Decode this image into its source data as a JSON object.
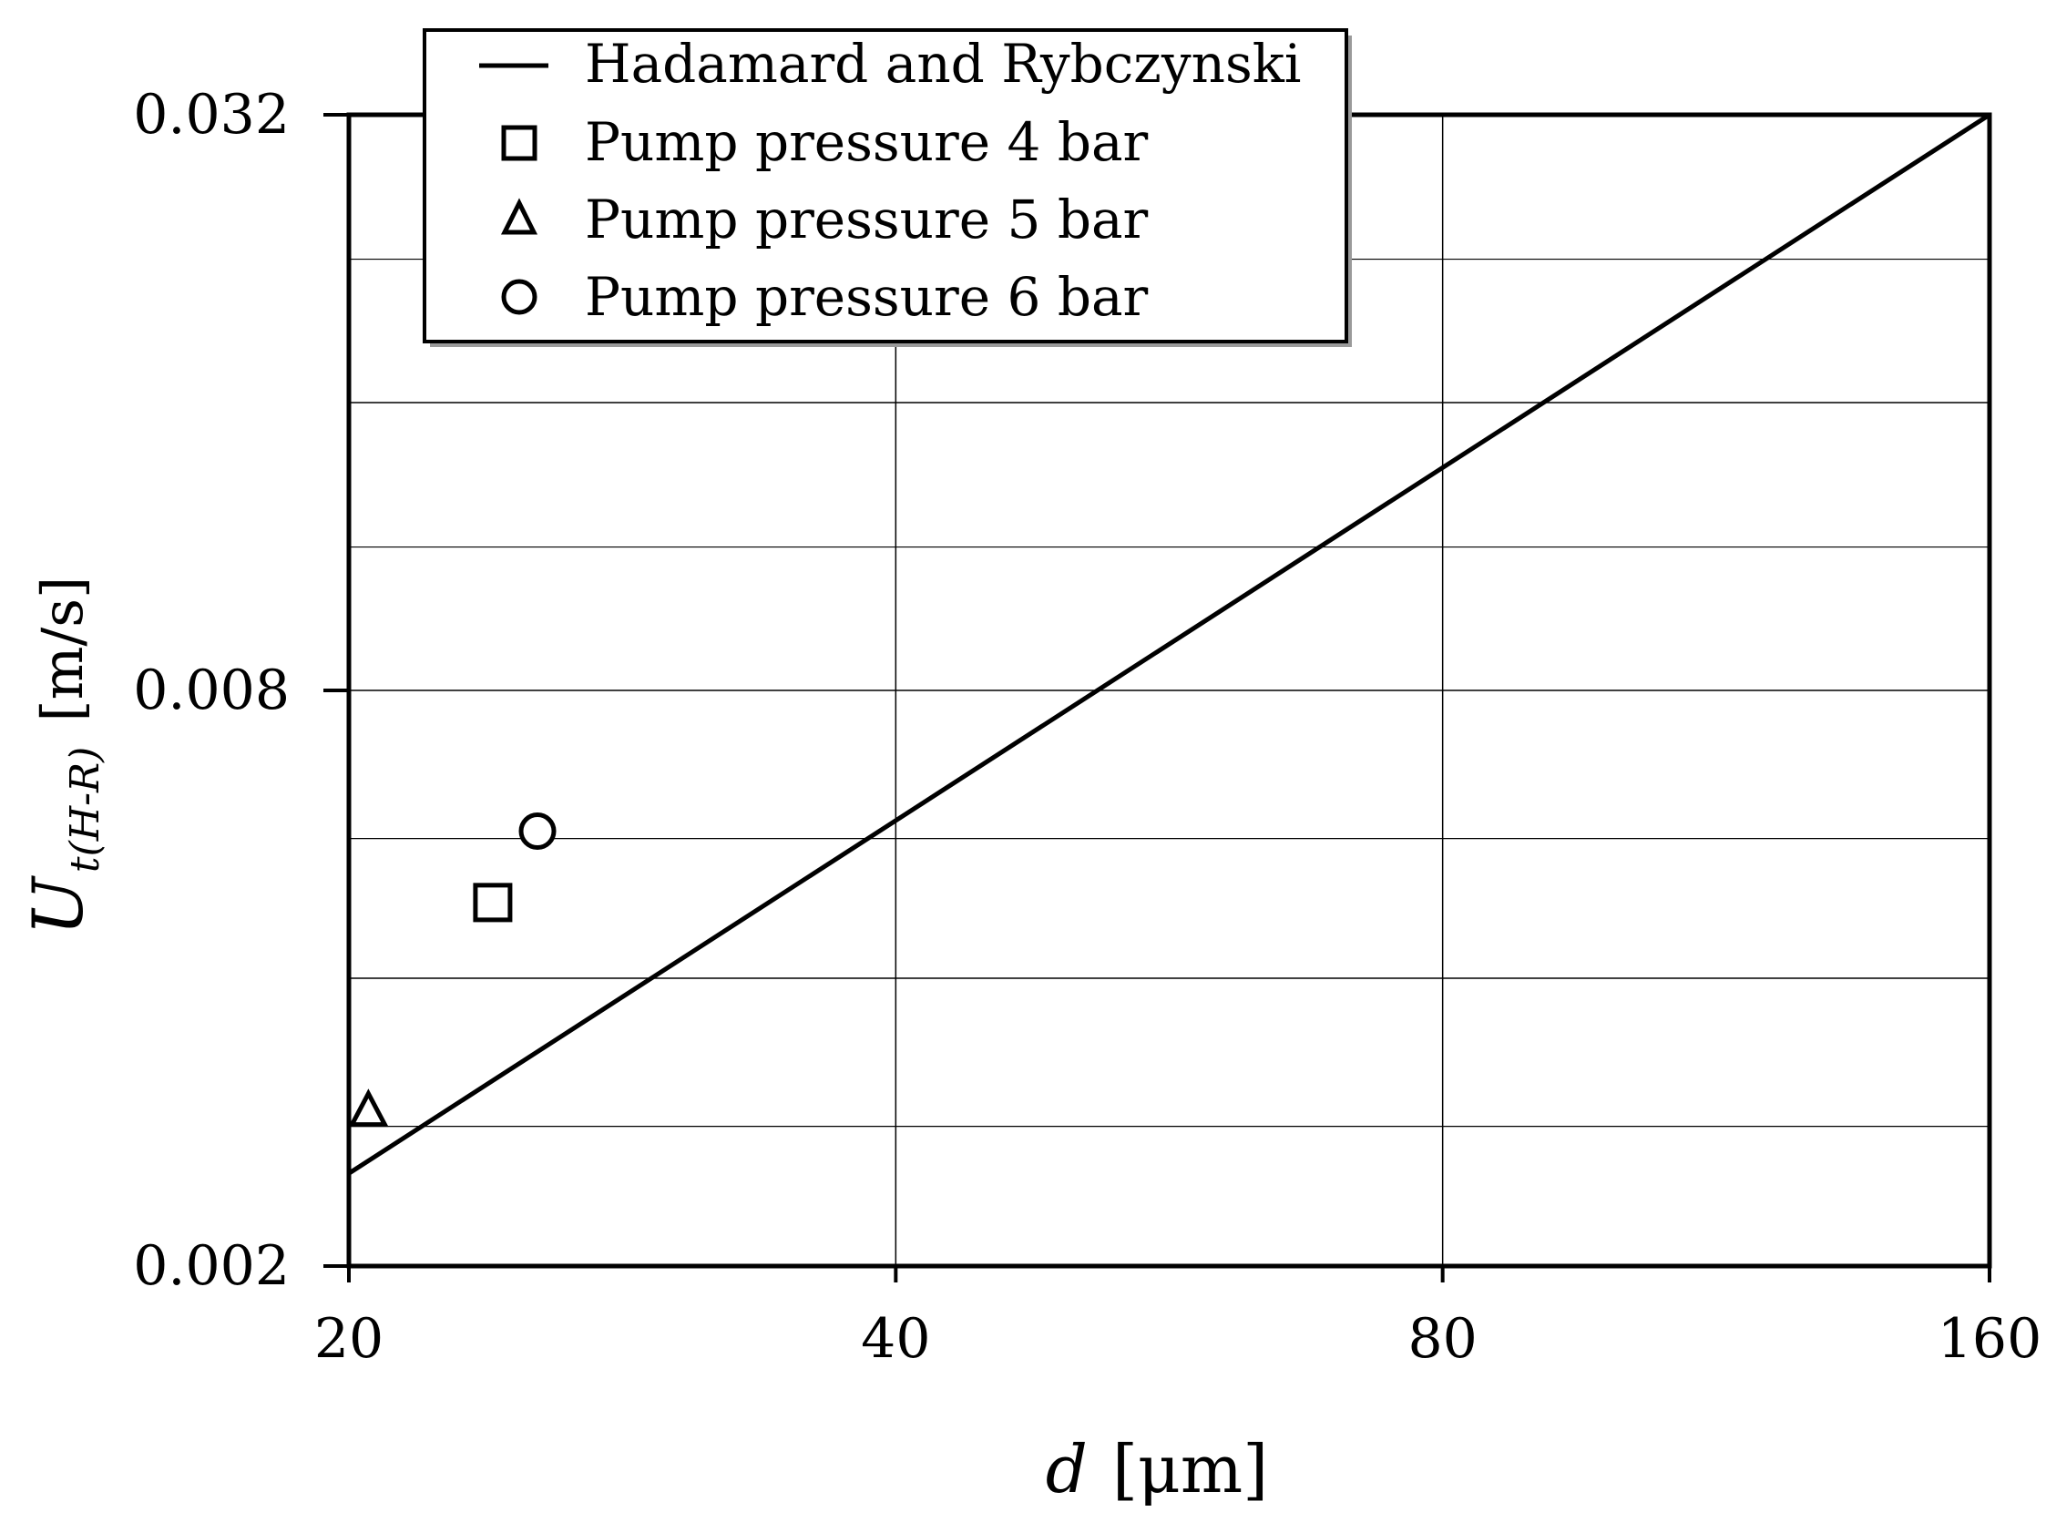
{
  "chart_data": {
    "type": "scatter",
    "x_scale": "log",
    "y_scale": "log",
    "xlim": [
      20,
      160
    ],
    "ylim": [
      0.002,
      0.032
    ],
    "x_ticks": [
      20,
      40,
      80,
      160
    ],
    "x_tick_labels": [
      "20",
      "40",
      "80",
      "160"
    ],
    "y_ticks": [
      0.002,
      0.008,
      0.032
    ],
    "y_tick_labels": [
      "0.002",
      "0.008",
      "0.032"
    ],
    "y_minor_grid": [
      0.004,
      0.016
    ],
    "grid": true,
    "xlabel": {
      "symbol": "d",
      "unit": "[μm]"
    },
    "ylabel": {
      "symbol": "U",
      "subscript": "t(H-R)",
      "unit": "[m/s]"
    },
    "legend_position": "top-left",
    "series": [
      {
        "name": "Hadamard and Rybczynski",
        "kind": "line",
        "marker": "line",
        "x": [
          20,
          160
        ],
        "y": [
          0.0025,
          0.032
        ]
      },
      {
        "name": "Pump pressure 4 bar",
        "kind": "scatter",
        "marker": "square",
        "x": [
          24
        ],
        "y": [
          0.0048
        ]
      },
      {
        "name": "Pump pressure 5 bar",
        "kind": "scatter",
        "marker": "triangle",
        "x": [
          20.5
        ],
        "y": [
          0.0029
        ]
      },
      {
        "name": "Pump pressure 6 bar",
        "kind": "scatter",
        "marker": "circle",
        "x": [
          25.4
        ],
        "y": [
          0.0057
        ]
      }
    ]
  }
}
